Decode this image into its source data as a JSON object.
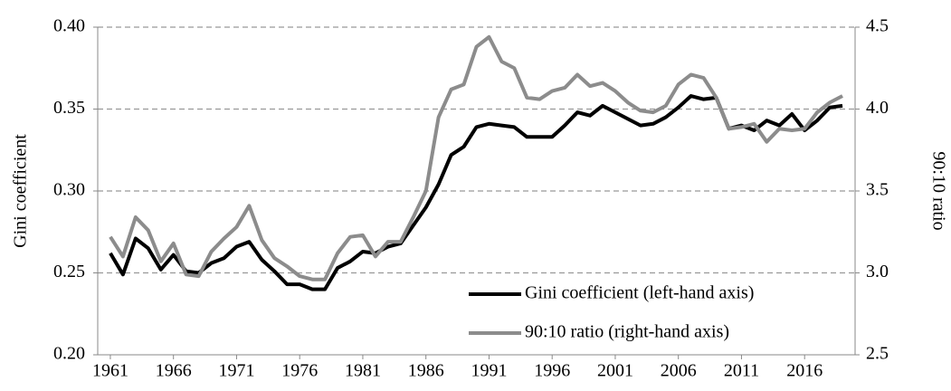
{
  "chart_data": {
    "type": "line",
    "y_label": "Gini coefficient",
    "y2_label": "90:10 ratio",
    "x": [
      1961,
      1962,
      1963,
      1964,
      1965,
      1966,
      1967,
      1968,
      1969,
      1970,
      1971,
      1972,
      1973,
      1974,
      1975,
      1976,
      1977,
      1978,
      1979,
      1980,
      1981,
      1982,
      1983,
      1984,
      1985,
      1986,
      1987,
      1988,
      1989,
      1990,
      1991,
      1992,
      1993,
      1994,
      1995,
      1996,
      1997,
      1998,
      1999,
      2000,
      2001,
      2002,
      2003,
      2004,
      2005,
      2006,
      2007,
      2008,
      2009,
      2010,
      2011,
      2012,
      2013,
      2014,
      2015,
      2016,
      2017,
      2018,
      2019
    ],
    "series": [
      {
        "name": "Gini coefficient (left-hand axis)",
        "color": "#000000",
        "axis": "y",
        "values": [
          0.262,
          0.249,
          0.271,
          0.265,
          0.252,
          0.261,
          0.251,
          0.25,
          0.256,
          0.259,
          0.266,
          0.269,
          0.258,
          0.251,
          0.243,
          0.243,
          0.24,
          0.24,
          0.253,
          0.257,
          0.263,
          0.262,
          0.266,
          0.268,
          0.279,
          0.29,
          0.304,
          0.322,
          0.327,
          0.339,
          0.341,
          0.34,
          0.339,
          0.333,
          0.333,
          0.333,
          0.34,
          0.348,
          0.346,
          0.352,
          0.348,
          0.344,
          0.34,
          0.341,
          0.345,
          0.351,
          0.358,
          0.356,
          0.357,
          0.338,
          0.34,
          0.337,
          0.343,
          0.34,
          0.347,
          0.337,
          0.343,
          0.351,
          0.352
        ]
      },
      {
        "name": "90:10 ratio (right-hand axis)",
        "color": "#8c8c8c",
        "axis": "y2",
        "values": [
          3.22,
          3.1,
          3.34,
          3.26,
          3.07,
          3.18,
          2.99,
          2.98,
          3.13,
          3.21,
          3.28,
          3.41,
          3.2,
          3.09,
          3.04,
          2.98,
          2.96,
          2.96,
          3.12,
          3.22,
          3.23,
          3.1,
          3.19,
          3.19,
          3.34,
          3.5,
          3.95,
          4.12,
          4.15,
          4.38,
          4.44,
          4.29,
          4.25,
          4.07,
          4.06,
          4.11,
          4.13,
          4.21,
          4.14,
          4.16,
          4.11,
          4.04,
          3.99,
          3.98,
          4.02,
          4.15,
          4.21,
          4.19,
          4.07,
          3.88,
          3.89,
          3.91,
          3.8,
          3.88,
          3.87,
          3.88,
          3.98,
          4.04,
          4.08
        ]
      }
    ],
    "xlim": [
      1960,
      2020
    ],
    "xticks": [
      1961,
      1966,
      1971,
      1976,
      1981,
      1986,
      1991,
      1996,
      2001,
      2006,
      2011,
      2016
    ],
    "ylim": [
      0.2,
      0.4
    ],
    "yticks": [
      {
        "value": 0.2,
        "label": "0.20"
      },
      0.25,
      {
        "value": 0.3,
        "label": "0.30"
      },
      0.35,
      {
        "value": 0.4,
        "label": "0.40"
      }
    ],
    "y2lim": [
      2.5,
      4.5
    ],
    "y2ticks": [
      2.5,
      {
        "value": 3,
        "label": "3.0"
      },
      3.5,
      {
        "value": 4,
        "label": "4.0"
      },
      4.5
    ],
    "grid": true,
    "legend": "lower right"
  }
}
